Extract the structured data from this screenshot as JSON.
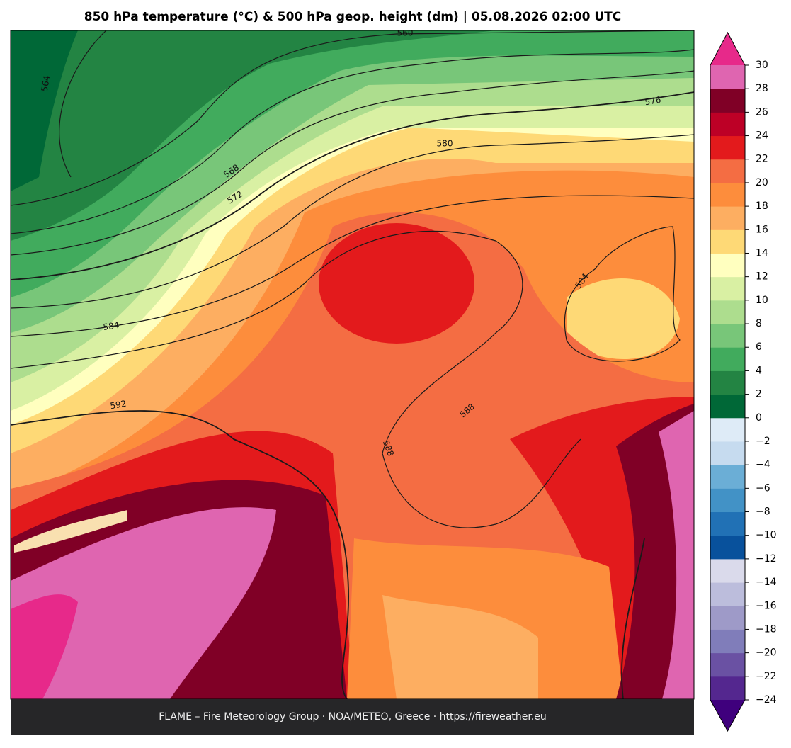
{
  "title": "850 hPa temperature (°C) & 500 hPa geop. height (dm)  |  05.08.2026 02:00 UTC",
  "map": {
    "contour_labels": [
      560,
      564,
      568,
      572,
      576,
      580,
      584,
      584,
      592,
      588,
      588
    ]
  },
  "colorbar": {
    "ticks": [
      {
        "value": -24,
        "label": "−24"
      },
      {
        "value": -22,
        "label": "−22"
      },
      {
        "value": -20,
        "label": "−20"
      },
      {
        "value": -18,
        "label": "−18"
      },
      {
        "value": -16,
        "label": "−16"
      },
      {
        "value": -14,
        "label": "−14"
      },
      {
        "value": -12,
        "label": "−12"
      },
      {
        "value": -10,
        "label": "−10"
      },
      {
        "value": -8,
        "label": "−8"
      },
      {
        "value": -6,
        "label": "−6"
      },
      {
        "value": -4,
        "label": "−4"
      },
      {
        "value": -2,
        "label": "−2"
      },
      0,
      2,
      4,
      6,
      8,
      10,
      12,
      14,
      16,
      18,
      20,
      22,
      24,
      26,
      28,
      30
    ],
    "colors": [
      "#54278f",
      "#6a51a3",
      "#807dba",
      "#9e9ac8",
      "#bcbddc",
      "#dadaeb",
      "#08519c",
      "#2171b5",
      "#4292c6",
      "#6baed6",
      "#c6dbef",
      "#deebf7",
      "#006837",
      "#238443",
      "#41ab5d",
      "#78c679",
      "#addd8e",
      "#d9f0a3",
      "#ffffbf",
      "#fed976",
      "#fdae61",
      "#fd8d3c",
      "#f46d43",
      "#e31a1c",
      "#bd0026",
      "#800026",
      "#df65b0"
    ],
    "under_color": "#3f007d",
    "over_color": "#e7298a"
  },
  "footer": "FLAME – Fire Meteorology Group · NOA/METEO, Greece · https://fireweather.eu"
}
